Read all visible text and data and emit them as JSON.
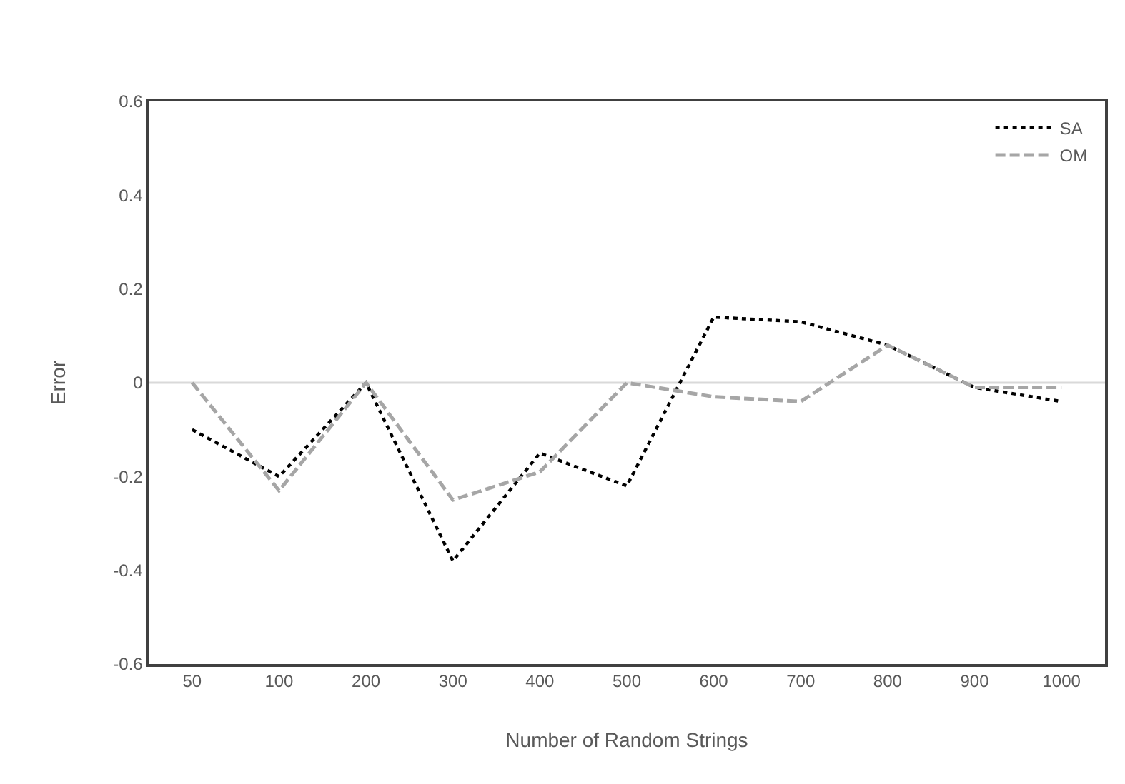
{
  "chart_data": {
    "type": "line",
    "xlabel": "Number of Random Strings",
    "ylabel": "Error",
    "categories": [
      "50",
      "100",
      "200",
      "300",
      "400",
      "500",
      "600",
      "700",
      "800",
      "900",
      "1000"
    ],
    "series": [
      {
        "name": "SA",
        "color": "#000000",
        "line_style": "dotted",
        "values": [
          -0.1,
          -0.2,
          0,
          -0.38,
          -0.15,
          -0.22,
          0.14,
          0.13,
          0.08,
          -0.01,
          -0.04
        ]
      },
      {
        "name": "OM",
        "color": "#a6a6a6",
        "line_style": "dashed",
        "values": [
          0,
          -0.23,
          0,
          -0.25,
          -0.19,
          0,
          -0.03,
          -0.04,
          0.08,
          -0.01,
          -0.01
        ]
      }
    ],
    "ylim": [
      -0.6,
      0.6
    ],
    "yticks": [
      -0.6,
      -0.4,
      -0.2,
      0,
      0.2,
      0.4,
      0.6
    ],
    "ref_lines": [
      {
        "axis": "y",
        "value": 0,
        "color": "#d9d9d9"
      }
    ],
    "grid": false,
    "legend": "top right",
    "marker": "none"
  }
}
